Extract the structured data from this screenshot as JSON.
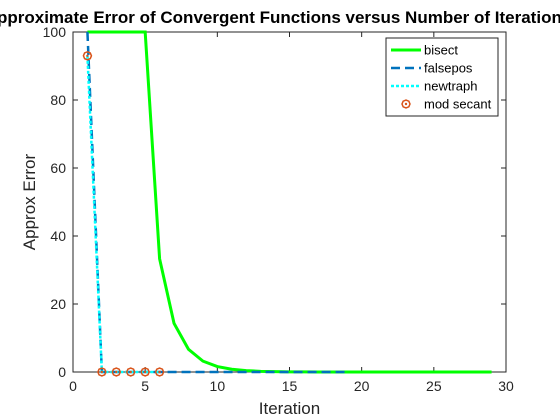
{
  "chart_data": {
    "type": "line",
    "title": "Approximate Error of Convergent Functions versus Number of Iterations",
    "xlabel": "Iteration",
    "ylabel": "Approx Error",
    "xlim": [
      0,
      30
    ],
    "ylim": [
      0,
      100
    ],
    "xticks": [
      0,
      5,
      10,
      15,
      20,
      25,
      30
    ],
    "yticks": [
      0,
      20,
      40,
      60,
      80,
      100
    ],
    "grid": false,
    "legend_position": "top-right",
    "series": [
      {
        "name": "bisect",
        "color": "#00ff00",
        "style": "solid",
        "x": [
          1,
          2,
          3,
          4,
          5,
          6,
          7,
          8,
          9,
          10,
          11,
          12,
          13,
          14,
          15,
          16,
          17,
          18,
          19,
          20,
          21,
          22,
          23,
          24,
          25,
          26,
          27,
          28,
          29
        ],
        "y": [
          100,
          100,
          100,
          100,
          100,
          33.3,
          14.3,
          6.7,
          3.2,
          1.6,
          0.8,
          0.4,
          0.2,
          0.1,
          0.05,
          0.02,
          0.01,
          0.005,
          0,
          0,
          0,
          0,
          0,
          0,
          0,
          0,
          0,
          0,
          0
        ]
      },
      {
        "name": "falsepos",
        "color": "#0072bd",
        "style": "dashed",
        "x": [
          1,
          2,
          3,
          4,
          5,
          6,
          7,
          8,
          9,
          10,
          11,
          12,
          13,
          14,
          15,
          16,
          17,
          18,
          19
        ],
        "y": [
          100,
          0,
          0,
          0,
          0,
          0,
          0,
          0,
          0,
          0,
          0,
          0,
          0,
          0,
          0,
          0,
          0,
          0,
          0
        ]
      },
      {
        "name": "newtraph",
        "color": "#00ffff",
        "style": "dotted",
        "x": [
          1,
          2,
          3,
          4,
          5,
          6
        ],
        "y": [
          93,
          0,
          0,
          0,
          0,
          0
        ]
      },
      {
        "name": "mod secant",
        "color": "#d95319",
        "style": "marker",
        "x": [
          1,
          2,
          3,
          4,
          5,
          6
        ],
        "y": [
          93,
          0,
          0,
          0,
          0,
          0
        ]
      }
    ]
  }
}
